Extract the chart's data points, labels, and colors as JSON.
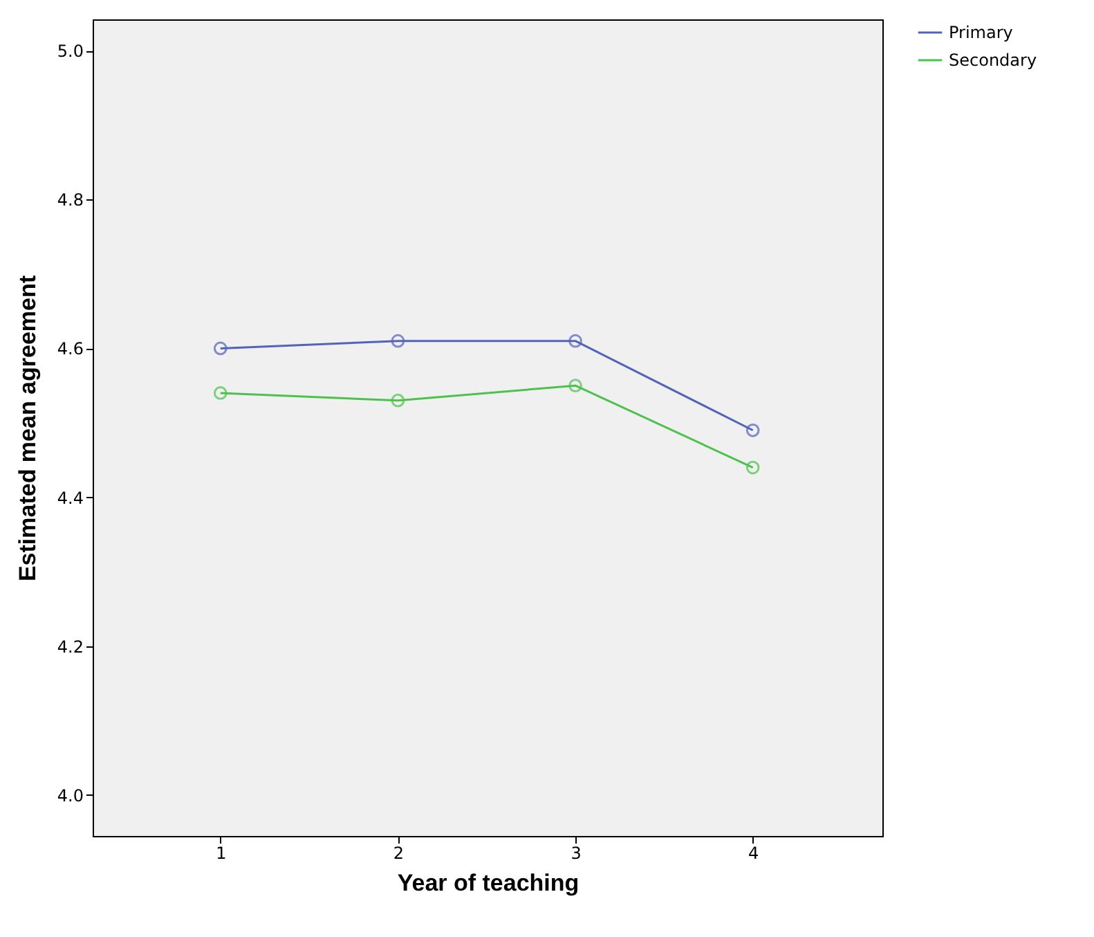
{
  "chart_data": {
    "type": "line",
    "xlabel": "Year of teaching",
    "ylabel": "Estimated mean agreement",
    "x": [
      1,
      2,
      3,
      4
    ],
    "xlim": [
      0.28,
      4.73
    ],
    "xticks": [
      1,
      2,
      3,
      4
    ],
    "ylim": [
      3.945,
      5.042
    ],
    "yticks": [
      {
        "value": 4.0,
        "label": "4.0"
      },
      {
        "value": 4.2,
        "label": "4.2"
      },
      {
        "value": 4.4,
        "label": "4.4"
      },
      {
        "value": 4.6,
        "label": "4.6"
      },
      {
        "value": 4.8,
        "label": "4.8"
      },
      {
        "value": 5.0,
        "label": "5.0"
      }
    ],
    "series": [
      {
        "name": "Primary",
        "color": "#5363b9",
        "values": [
          4.6,
          4.61,
          4.61,
          4.49
        ]
      },
      {
        "name": "Secondary",
        "color": "#4cc24c",
        "values": [
          4.54,
          4.53,
          4.55,
          4.44
        ]
      }
    ],
    "marker": "circle",
    "line_style": "solid",
    "grid": false,
    "legend": "right"
  }
}
